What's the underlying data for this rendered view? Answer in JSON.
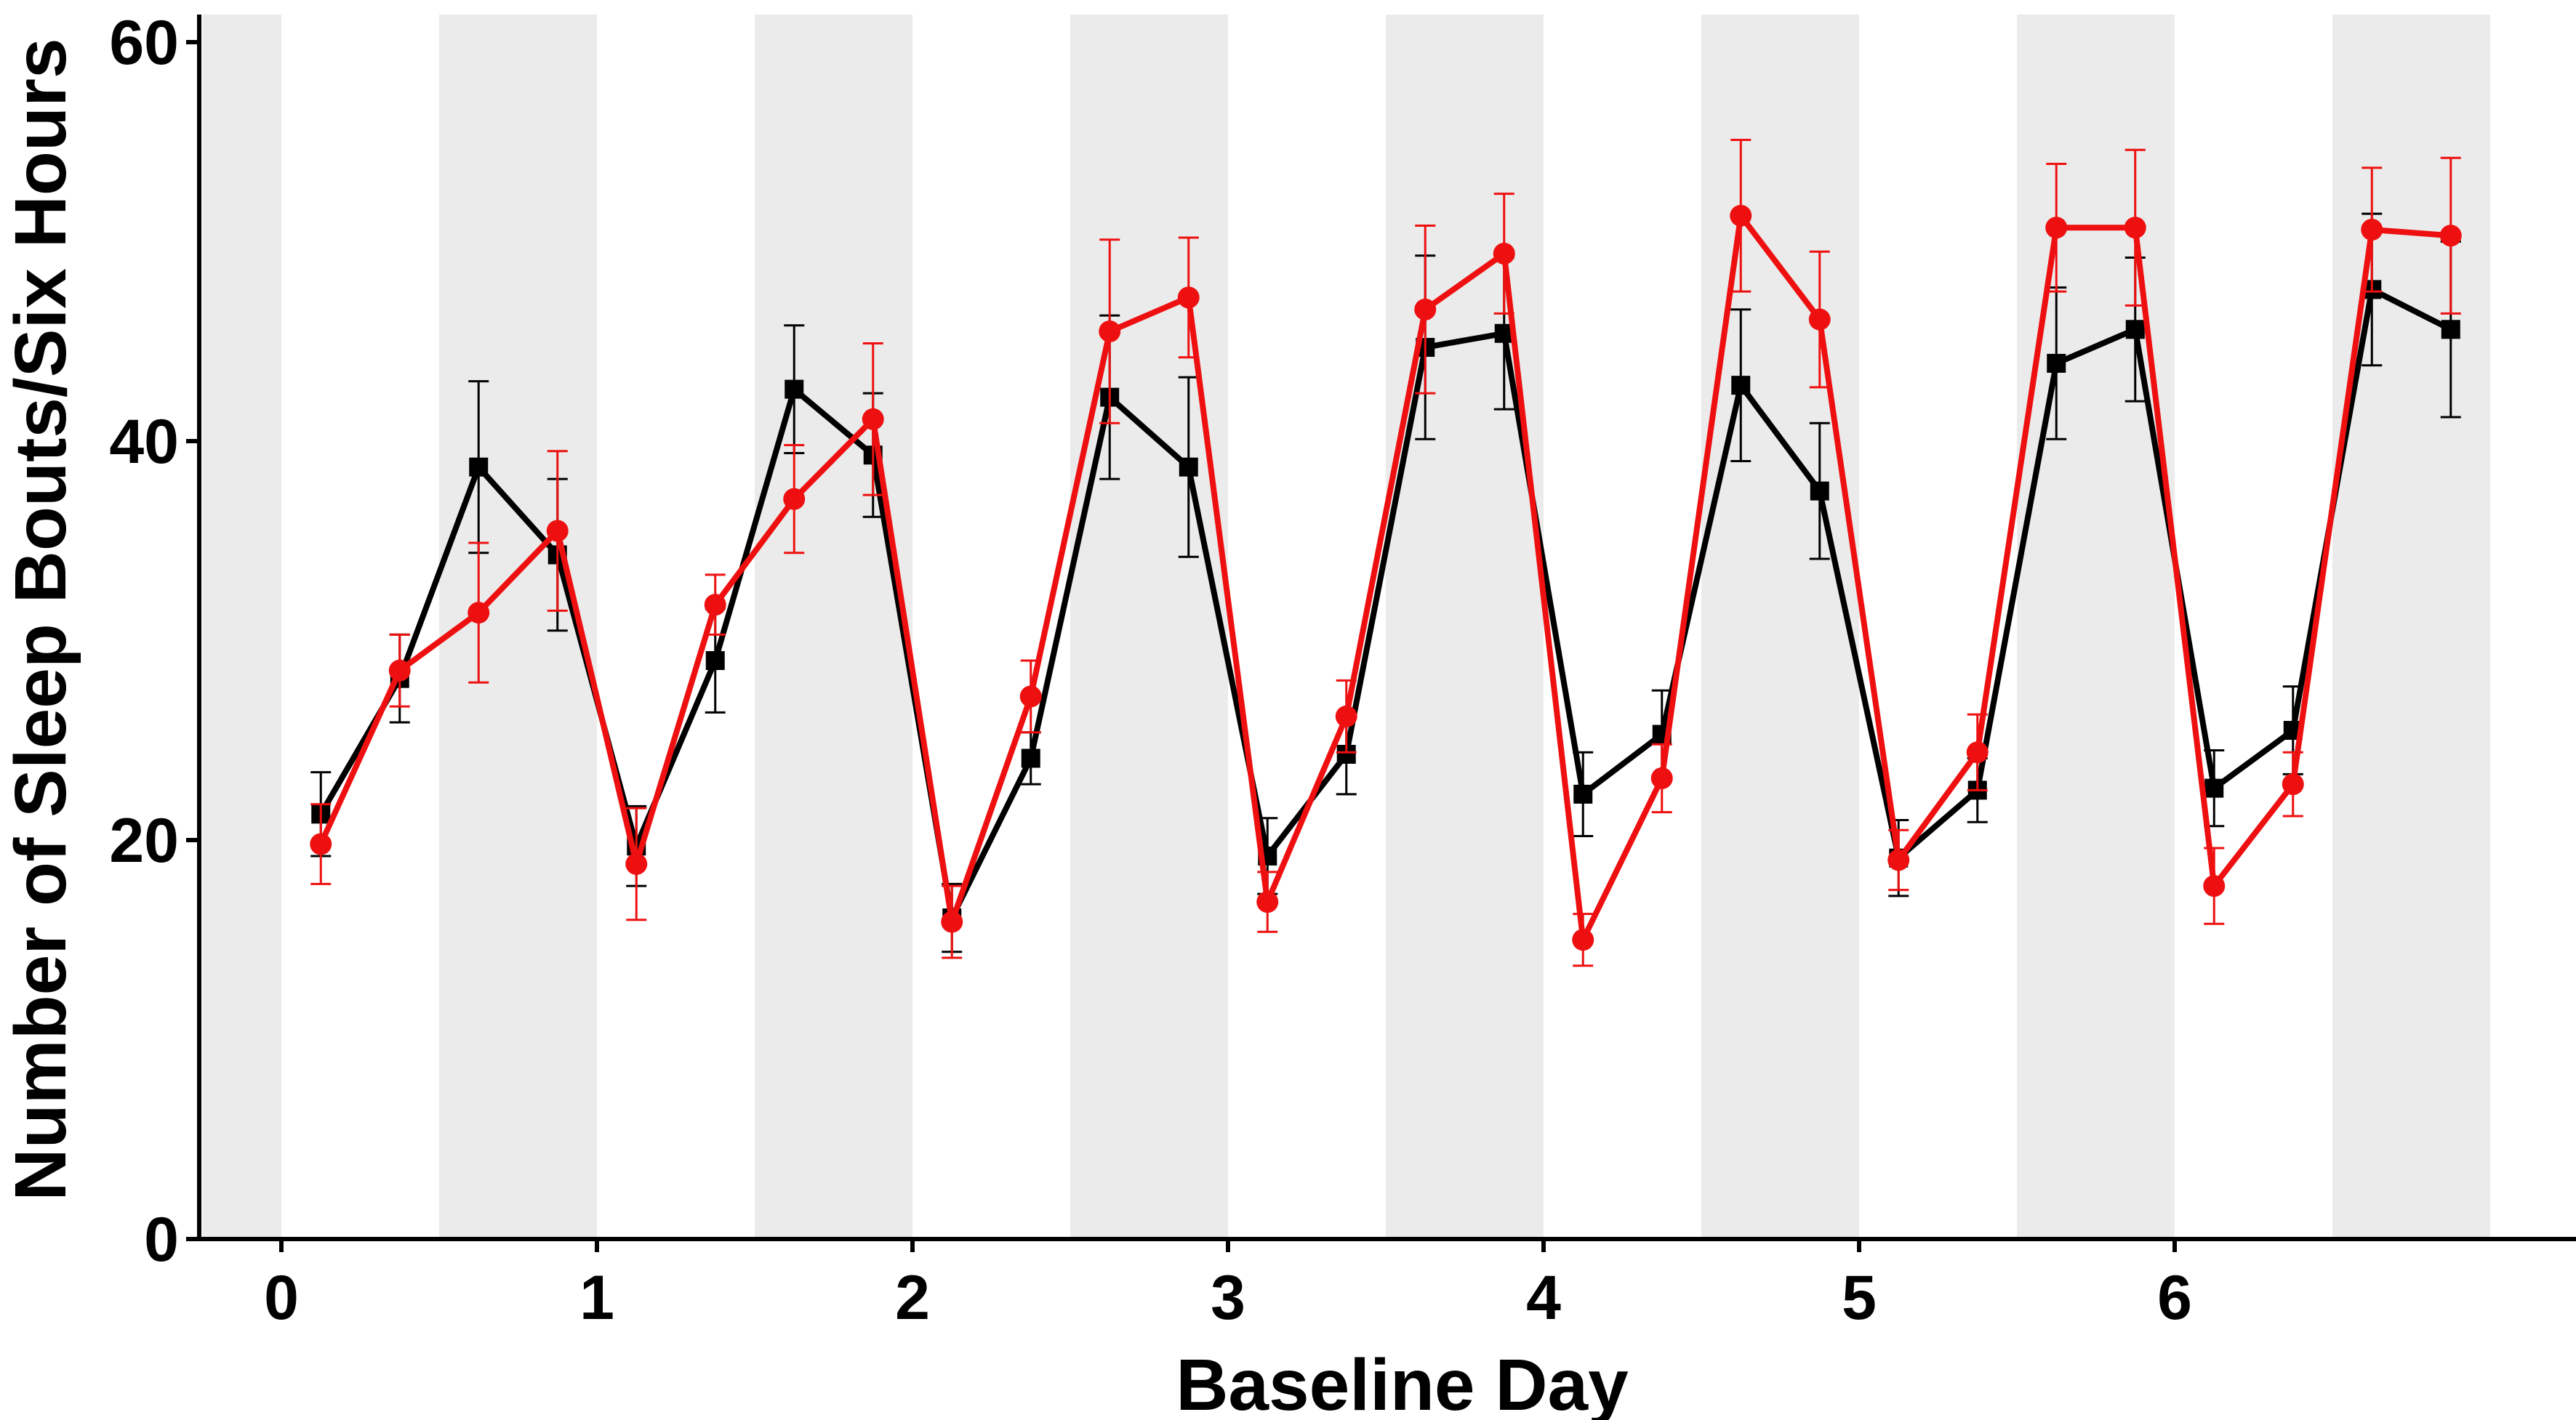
{
  "chart_data": {
    "type": "line",
    "title": "",
    "xlabel": "Baseline Day",
    "ylabel": "Number of Sleep Bouts/Six Hours",
    "xlim": [
      -0.25,
      7.0
    ],
    "ylim": [
      0,
      60
    ],
    "xticks": [
      0,
      1,
      2,
      3,
      4,
      5,
      6
    ],
    "yticks": [
      0,
      20,
      40,
      60
    ],
    "shaded_bands": [
      [
        -0.25,
        0
      ],
      [
        0.5,
        1
      ],
      [
        1.5,
        2
      ],
      [
        2.5,
        3
      ],
      [
        3.5,
        4
      ],
      [
        4.5,
        5
      ],
      [
        5.5,
        6
      ],
      [
        6.5,
        7.0
      ]
    ],
    "shade_color": "#ebebeb",
    "grid": false,
    "legend": "none",
    "x": [
      0.125,
      0.375,
      0.625,
      0.875,
      1.125,
      1.375,
      1.625,
      1.875,
      2.125,
      2.375,
      2.625,
      2.875,
      3.125,
      3.375,
      3.625,
      3.875,
      4.125,
      4.375,
      4.625,
      4.875,
      5.125,
      5.375,
      5.625,
      5.875,
      6.125,
      6.375,
      6.625,
      6.875
    ],
    "series": [
      {
        "color": "#000000",
        "marker": "square",
        "values": [
          21.3,
          28.1,
          38.7,
          34.3,
          19.7,
          29.0,
          42.6,
          39.3,
          16.1,
          24.1,
          42.2,
          38.7,
          19.2,
          24.3,
          44.7,
          45.4,
          22.3,
          25.3,
          42.8,
          37.5,
          19.1,
          22.5,
          43.9,
          45.6,
          22.6,
          25.5,
          47.6,
          45.6
        ],
        "errors": [
          2.1,
          2.2,
          4.3,
          3.8,
          2.0,
          2.6,
          3.2,
          3.1,
          1.7,
          1.3,
          4.1,
          4.5,
          1.9,
          2.0,
          4.6,
          3.8,
          2.1,
          2.2,
          3.8,
          3.4,
          1.9,
          1.6,
          3.8,
          3.6,
          1.9,
          2.2,
          3.8,
          4.4
        ]
      },
      {
        "color": "#ee1010",
        "marker": "circle",
        "values": [
          19.8,
          28.5,
          31.4,
          35.5,
          18.8,
          31.8,
          37.1,
          41.1,
          15.9,
          27.2,
          45.5,
          47.2,
          16.9,
          26.2,
          46.6,
          49.4,
          15.0,
          23.1,
          51.3,
          46.1,
          19.0,
          24.4,
          50.7,
          50.7,
          17.7,
          22.8,
          50.6,
          50.3
        ],
        "errors": [
          2.0,
          1.8,
          3.5,
          4.0,
          2.8,
          1.5,
          2.7,
          3.8,
          1.8,
          1.8,
          4.6,
          3.0,
          1.5,
          1.8,
          4.2,
          3.0,
          1.3,
          1.7,
          3.8,
          3.4,
          1.5,
          1.9,
          3.2,
          3.9,
          1.9,
          1.6,
          3.1,
          3.9
        ]
      }
    ]
  }
}
